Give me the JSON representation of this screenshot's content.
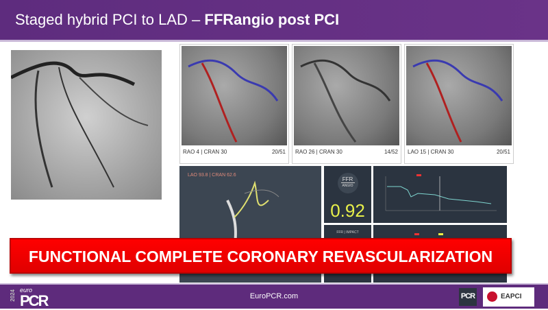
{
  "slide": {
    "title_plain": "Staged hybrid PCI to LAD – ",
    "title_bold": "FFRangio post PCI"
  },
  "views": [
    {
      "label": "RAO 4 | CRAN 30",
      "frame": "20/51"
    },
    {
      "label": "RAO 26 | CRAN 30",
      "frame": "14/52"
    },
    {
      "label": "LAO 15 | CRAN 30",
      "frame": "20/51"
    }
  ],
  "recon": {
    "label": "LAO 93.8 | CRAN 62.6"
  },
  "ffr": {
    "title": "FFR",
    "subtitle": "ANGIO",
    "value": "0.92"
  },
  "impact": {
    "title": "FFR | IMPACT"
  },
  "banner": "FUNCTIONAL COMPLETE CORONARY REVASCULARIZATION",
  "footer": {
    "year": "2024",
    "euro": "euro",
    "pcr": "PCR",
    "site": "EuroPCR.com",
    "pcr_badge": "PCR",
    "eapci": "EAPCI"
  },
  "colors": {
    "header": "#5e2c7e",
    "banner": "#ff0000",
    "ffr_value": "#e8f04a"
  }
}
